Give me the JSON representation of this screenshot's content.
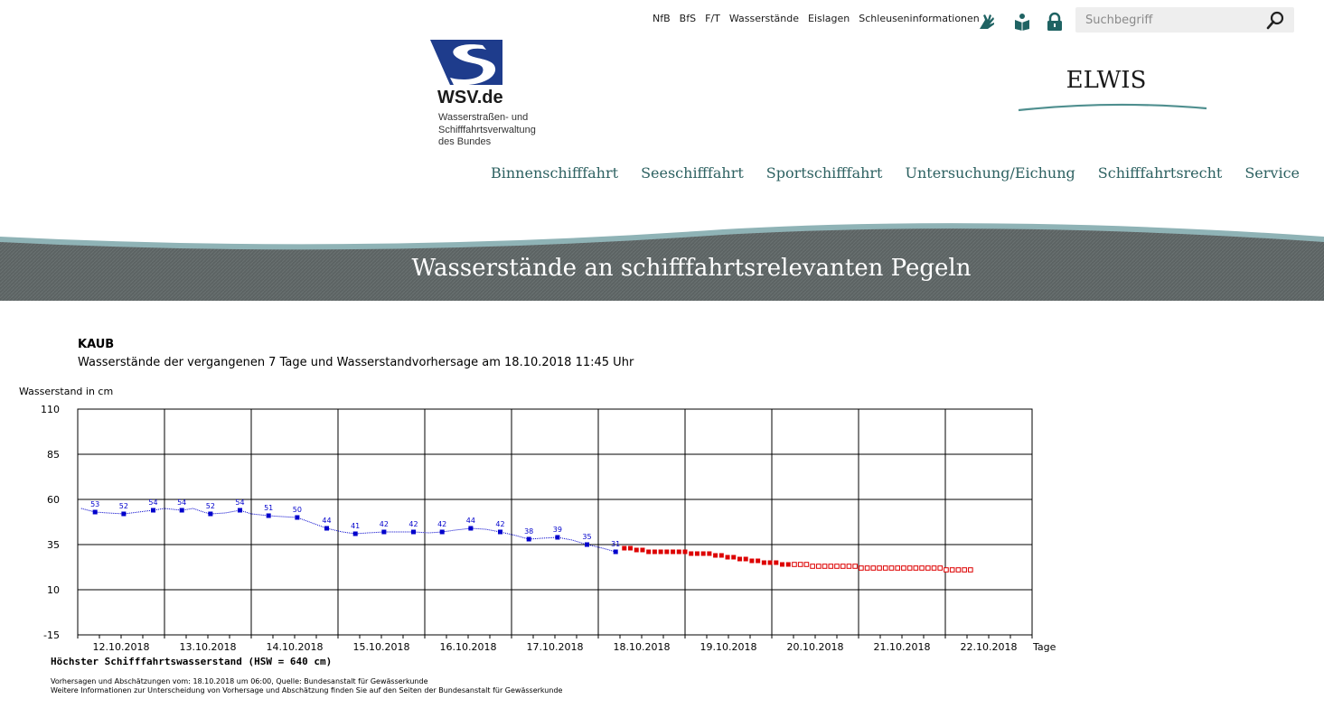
{
  "header": {
    "top_links": [
      "NfB",
      "BfS",
      "F/T",
      "Wasserstände",
      "Eislagen",
      "Schleuseninformationen"
    ],
    "search_placeholder": "Suchbegriff",
    "logo": {
      "name": "WSV.de",
      "subtitle": "Wasserstraßen- und\nSchifffahrtsverwaltung\ndes Bundes"
    },
    "site_title": "ELWIS",
    "main_nav": [
      "Binnenschifffahrt",
      "Seeschifffahrt",
      "Sportschifffahrt",
      "Untersuchung/Eichung",
      "Schifffahrtsrecht",
      "Service"
    ],
    "banner_title": "Wasserstände an schifffahrtsrelevanten Pegeln",
    "icons": [
      "sign-language-icon",
      "easy-language-icon",
      "lock-icon",
      "search-icon"
    ]
  },
  "page": {
    "gauge": "KAUB",
    "subtitle": "Wasserstände der vergangenen 7 Tage und Wasserstandvorhersage am 18.10.2018 11:45 Uhr",
    "hsw": "Höchster Schifffahrtswasserstand (HSW = 640 cm)",
    "notes": [
      "Vorhersagen und Abschätzungen vom: 18.10.2018 um 06:00, Quelle: Bundesanstalt für Gewässerkunde",
      "Weitere Informationen zur Unterscheidung von Vorhersage und Abschätzung finden Sie auf den Seiten der Bundesanstalt für Gewässerkunde"
    ]
  },
  "chart_data": {
    "type": "line",
    "ylabel": "Wasserstand in cm",
    "xlabel": "Tage",
    "ylim": [
      -15,
      110
    ],
    "yticks": [
      110,
      85,
      60,
      35,
      10,
      -15
    ],
    "xlim": [
      0,
      11
    ],
    "categories": [
      "12.10.2018",
      "13.10.2018",
      "14.10.2018",
      "15.10.2018",
      "16.10.2018",
      "17.10.2018",
      "18.10.2018",
      "19.10.2018",
      "20.10.2018",
      "21.10.2018",
      "22.10.2018"
    ],
    "grid": true,
    "colors": {
      "measured": "#0000cc",
      "forecast": "#dd0000"
    },
    "measured_labeled": [
      {
        "x": 0.2,
        "y": 53
      },
      {
        "x": 0.53,
        "y": 52
      },
      {
        "x": 0.87,
        "y": 54
      },
      {
        "x": 1.2,
        "y": 54
      },
      {
        "x": 1.53,
        "y": 52
      },
      {
        "x": 1.87,
        "y": 54
      },
      {
        "x": 2.2,
        "y": 51
      },
      {
        "x": 2.53,
        "y": 50
      },
      {
        "x": 2.87,
        "y": 44
      },
      {
        "x": 3.2,
        "y": 41
      },
      {
        "x": 3.53,
        "y": 42
      },
      {
        "x": 3.87,
        "y": 42
      },
      {
        "x": 4.2,
        "y": 42
      },
      {
        "x": 4.53,
        "y": 44
      },
      {
        "x": 4.87,
        "y": 42
      },
      {
        "x": 5.2,
        "y": 38
      },
      {
        "x": 5.53,
        "y": 39
      },
      {
        "x": 5.87,
        "y": 35
      },
      {
        "x": 6.2,
        "y": 31
      }
    ],
    "measured_line": [
      [
        0.04,
        55
      ],
      [
        0.2,
        53
      ],
      [
        0.35,
        52.5
      ],
      [
        0.53,
        52
      ],
      [
        0.7,
        53
      ],
      [
        0.87,
        54
      ],
      [
        1.0,
        55
      ],
      [
        1.2,
        54
      ],
      [
        1.33,
        55
      ],
      [
        1.45,
        53
      ],
      [
        1.53,
        52
      ],
      [
        1.7,
        52.5
      ],
      [
        1.87,
        54
      ],
      [
        2.0,
        52
      ],
      [
        2.2,
        51
      ],
      [
        2.35,
        50.5
      ],
      [
        2.53,
        50
      ],
      [
        2.7,
        47
      ],
      [
        2.87,
        44
      ],
      [
        3.05,
        42
      ],
      [
        3.2,
        41
      ],
      [
        3.35,
        41.5
      ],
      [
        3.53,
        42
      ],
      [
        3.7,
        42
      ],
      [
        3.87,
        42
      ],
      [
        4.05,
        41.5
      ],
      [
        4.2,
        42
      ],
      [
        4.35,
        43
      ],
      [
        4.53,
        44
      ],
      [
        4.7,
        43.5
      ],
      [
        4.87,
        42
      ],
      [
        5.05,
        40
      ],
      [
        5.2,
        38
      ],
      [
        5.35,
        38.5
      ],
      [
        5.53,
        39
      ],
      [
        5.7,
        37.5
      ],
      [
        5.87,
        35
      ],
      [
        6.05,
        33
      ],
      [
        6.2,
        31
      ]
    ],
    "forecast": [
      {
        "x": 6.3,
        "y": 33
      },
      {
        "x": 6.37,
        "y": 33
      },
      {
        "x": 6.44,
        "y": 32
      },
      {
        "x": 6.51,
        "y": 32
      },
      {
        "x": 6.58,
        "y": 31
      },
      {
        "x": 6.65,
        "y": 31
      },
      {
        "x": 6.72,
        "y": 31
      },
      {
        "x": 6.79,
        "y": 31
      },
      {
        "x": 6.86,
        "y": 31
      },
      {
        "x": 6.93,
        "y": 31
      },
      {
        "x": 7.0,
        "y": 31
      },
      {
        "x": 7.07,
        "y": 30
      },
      {
        "x": 7.14,
        "y": 30
      },
      {
        "x": 7.21,
        "y": 30
      },
      {
        "x": 7.28,
        "y": 30
      },
      {
        "x": 7.35,
        "y": 29
      },
      {
        "x": 7.42,
        "y": 29
      },
      {
        "x": 7.49,
        "y": 28
      },
      {
        "x": 7.56,
        "y": 28
      },
      {
        "x": 7.63,
        "y": 27
      },
      {
        "x": 7.7,
        "y": 27
      },
      {
        "x": 7.77,
        "y": 26
      },
      {
        "x": 7.84,
        "y": 26
      },
      {
        "x": 7.91,
        "y": 25
      },
      {
        "x": 7.98,
        "y": 25
      },
      {
        "x": 8.05,
        "y": 25
      },
      {
        "x": 8.12,
        "y": 24
      },
      {
        "x": 8.19,
        "y": 24
      }
    ],
    "estimate": [
      {
        "x": 8.26,
        "y": 24
      },
      {
        "x": 8.33,
        "y": 24
      },
      {
        "x": 8.4,
        "y": 24
      },
      {
        "x": 8.47,
        "y": 23
      },
      {
        "x": 8.54,
        "y": 23
      },
      {
        "x": 8.61,
        "y": 23
      },
      {
        "x": 8.68,
        "y": 23
      },
      {
        "x": 8.75,
        "y": 23
      },
      {
        "x": 8.82,
        "y": 23
      },
      {
        "x": 8.89,
        "y": 23
      },
      {
        "x": 8.96,
        "y": 23
      },
      {
        "x": 9.03,
        "y": 22
      },
      {
        "x": 9.1,
        "y": 22
      },
      {
        "x": 9.17,
        "y": 22
      },
      {
        "x": 9.24,
        "y": 22
      },
      {
        "x": 9.31,
        "y": 22
      },
      {
        "x": 9.38,
        "y": 22
      },
      {
        "x": 9.45,
        "y": 22
      },
      {
        "x": 9.52,
        "y": 22
      },
      {
        "x": 9.59,
        "y": 22
      },
      {
        "x": 9.66,
        "y": 22
      },
      {
        "x": 9.73,
        "y": 22
      },
      {
        "x": 9.8,
        "y": 22
      },
      {
        "x": 9.87,
        "y": 22
      },
      {
        "x": 9.94,
        "y": 22
      },
      {
        "x": 10.01,
        "y": 21
      },
      {
        "x": 10.08,
        "y": 21
      },
      {
        "x": 10.15,
        "y": 21
      },
      {
        "x": 10.22,
        "y": 21
      },
      {
        "x": 10.29,
        "y": 21
      }
    ]
  }
}
